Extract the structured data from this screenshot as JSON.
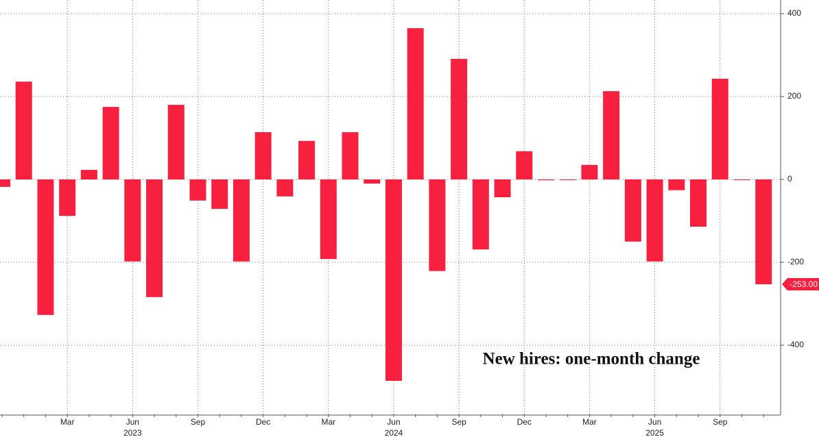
{
  "chart_data": {
    "type": "bar",
    "annotation": "New hires: one-month change",
    "categories": [
      null,
      null,
      null,
      "Mar",
      null,
      null,
      "Jun",
      null,
      null,
      "Sep",
      null,
      null,
      "Dec",
      null,
      null,
      "Mar",
      null,
      null,
      "Jun",
      null,
      null,
      "Sep",
      null,
      null,
      "Dec",
      null,
      null,
      "Mar",
      null,
      null,
      "Jun",
      null,
      null,
      "Sep",
      null,
      null
    ],
    "categories2": [
      null,
      null,
      null,
      null,
      null,
      null,
      "2023",
      null,
      null,
      null,
      null,
      null,
      null,
      null,
      null,
      null,
      null,
      null,
      "2024",
      null,
      null,
      null,
      null,
      null,
      null,
      null,
      null,
      null,
      null,
      null,
      "2025",
      null,
      null,
      null,
      null,
      null
    ],
    "values": [
      -18,
      236,
      -327,
      -88,
      23,
      175,
      -198,
      -284,
      180,
      -51,
      -71,
      -198,
      114,
      -41,
      93,
      -192,
      114,
      -10,
      -486,
      365,
      -221,
      291,
      -169,
      -43,
      68,
      -2,
      -1,
      35,
      213,
      -150,
      -198,
      -26,
      -114,
      243,
      -1,
      -253
    ],
    "value_labels": [
      null,
      null,
      null,
      null,
      null,
      null,
      null,
      null,
      null,
      null,
      null,
      null,
      null,
      null,
      null,
      null,
      null,
      null,
      null,
      null,
      null,
      null,
      null,
      null,
      null,
      null,
      null,
      null,
      null,
      null,
      null,
      null,
      null,
      null,
      null,
      "-253.00"
    ],
    "color": "#f8203f",
    "ylim": [
      -567,
      433
    ],
    "yticks": [
      -400,
      -200,
      0,
      200,
      400
    ],
    "grid": true
  }
}
